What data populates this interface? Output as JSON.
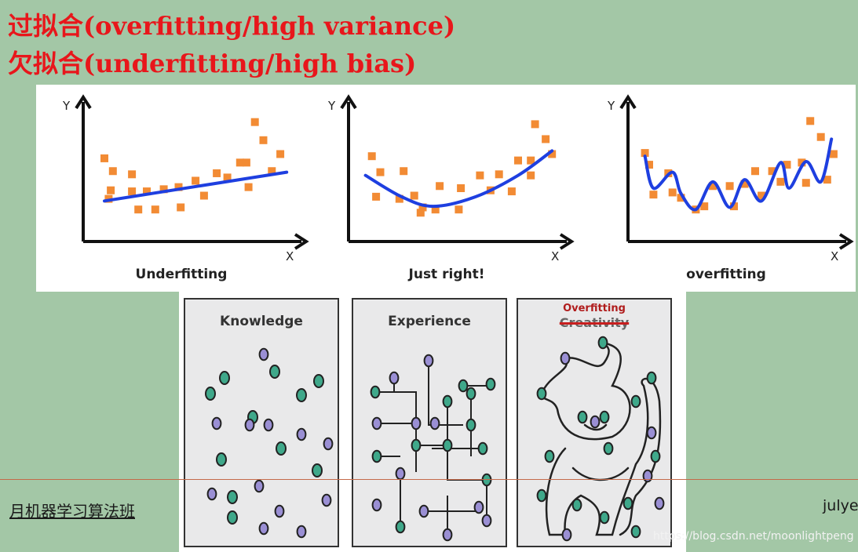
{
  "titles": {
    "line1": "过拟合(overfitting/high variance)",
    "line2": "欠拟合(underfitting/high bias)"
  },
  "colors": {
    "title": "#e8161b",
    "points": "#f28b34",
    "curve": "#1e3fe0",
    "teal_dot": "#3fa88a",
    "purple_dot": "#9a8fd4"
  },
  "chart_data": [
    {
      "type": "scatter",
      "title": "Underfitting",
      "xlabel": "X",
      "ylabel": "Y",
      "fit": "linear",
      "points": [
        [
          1,
          0.78
        ],
        [
          1.4,
          0.66
        ],
        [
          2.3,
          0.63
        ],
        [
          1.3,
          0.48
        ],
        [
          1.2,
          0.4
        ],
        [
          2.3,
          0.47
        ],
        [
          3,
          0.47
        ],
        [
          2.6,
          0.3
        ],
        [
          3.4,
          0.3
        ],
        [
          3.8,
          0.49
        ],
        [
          4.5,
          0.51
        ],
        [
          4.6,
          0.32
        ],
        [
          5.3,
          0.57
        ],
        [
          5.7,
          0.43
        ],
        [
          6.3,
          0.64
        ],
        [
          6.8,
          0.6
        ],
        [
          7.4,
          0.74
        ],
        [
          7.7,
          0.74
        ],
        [
          7.8,
          0.51
        ],
        [
          8.1,
          1.12
        ],
        [
          8.5,
          0.95
        ],
        [
          8.9,
          0.66
        ],
        [
          9.3,
          0.82
        ]
      ],
      "fit_line": [
        [
          1,
          0.38
        ],
        [
          9.6,
          0.65
        ]
      ]
    },
    {
      "type": "scatter",
      "title": "Just right!",
      "xlabel": "X",
      "ylabel": "Y",
      "fit": "quadratic",
      "points": [
        [
          1.1,
          0.8
        ],
        [
          1.5,
          0.65
        ],
        [
          2.6,
          0.66
        ],
        [
          1.3,
          0.42
        ],
        [
          2.4,
          0.4
        ],
        [
          3.1,
          0.43
        ],
        [
          3.5,
          0.32
        ],
        [
          3.4,
          0.27
        ],
        [
          4.1,
          0.3
        ],
        [
          4.3,
          0.52
        ],
        [
          5.3,
          0.5
        ],
        [
          5.2,
          0.3
        ],
        [
          6.2,
          0.62
        ],
        [
          6.7,
          0.48
        ],
        [
          7.1,
          0.63
        ],
        [
          7.7,
          0.47
        ],
        [
          8,
          0.76
        ],
        [
          8.6,
          0.76
        ],
        [
          8.6,
          0.62
        ],
        [
          8.8,
          1.1
        ],
        [
          9.3,
          0.96
        ],
        [
          9.6,
          0.82
        ]
      ],
      "fit_line": [
        [
          0.8,
          0.62
        ],
        [
          2.5,
          0.42
        ],
        [
          4,
          0.33
        ],
        [
          6,
          0.42
        ],
        [
          8,
          0.62
        ],
        [
          9.6,
          0.85
        ]
      ]
    },
    {
      "type": "scatter",
      "title": "overfitting",
      "xlabel": "X",
      "ylabel": "Y",
      "fit": "high-degree polynomial",
      "points": [
        [
          0.8,
          0.83
        ],
        [
          1,
          0.72
        ],
        [
          1.2,
          0.44
        ],
        [
          1.9,
          0.64
        ],
        [
          2.1,
          0.46
        ],
        [
          2.5,
          0.41
        ],
        [
          3.2,
          0.3
        ],
        [
          3.6,
          0.33
        ],
        [
          4,
          0.52
        ],
        [
          4.8,
          0.52
        ],
        [
          5,
          0.33
        ],
        [
          5.5,
          0.54
        ],
        [
          6,
          0.66
        ],
        [
          6.3,
          0.43
        ],
        [
          6.8,
          0.66
        ],
        [
          7.2,
          0.56
        ],
        [
          7.5,
          0.72
        ],
        [
          8.2,
          0.74
        ],
        [
          8.4,
          0.55
        ],
        [
          8.6,
          1.13
        ],
        [
          9.1,
          0.98
        ],
        [
          9.4,
          0.58
        ],
        [
          9.7,
          0.82
        ]
      ],
      "fit_line": [
        [
          0.8,
          0.8
        ],
        [
          1.2,
          0.5
        ],
        [
          2.1,
          0.65
        ],
        [
          2.5,
          0.45
        ],
        [
          3.2,
          0.3
        ],
        [
          4,
          0.56
        ],
        [
          4.8,
          0.32
        ],
        [
          5.5,
          0.58
        ],
        [
          6.3,
          0.38
        ],
        [
          7.2,
          0.74
        ],
        [
          7.6,
          0.5
        ],
        [
          8.4,
          0.75
        ],
        [
          9.1,
          0.56
        ],
        [
          9.6,
          0.96
        ]
      ]
    }
  ],
  "comic": {
    "panels": [
      {
        "title": "Knowledge"
      },
      {
        "title": "Experience"
      },
      {
        "title": "Creativity",
        "overwrite": "Overfitting"
      }
    ]
  },
  "footer": {
    "left": "月机器学习算法班",
    "right": "julye",
    "watermark": "https://blog.csdn.net/moonlightpeng"
  }
}
